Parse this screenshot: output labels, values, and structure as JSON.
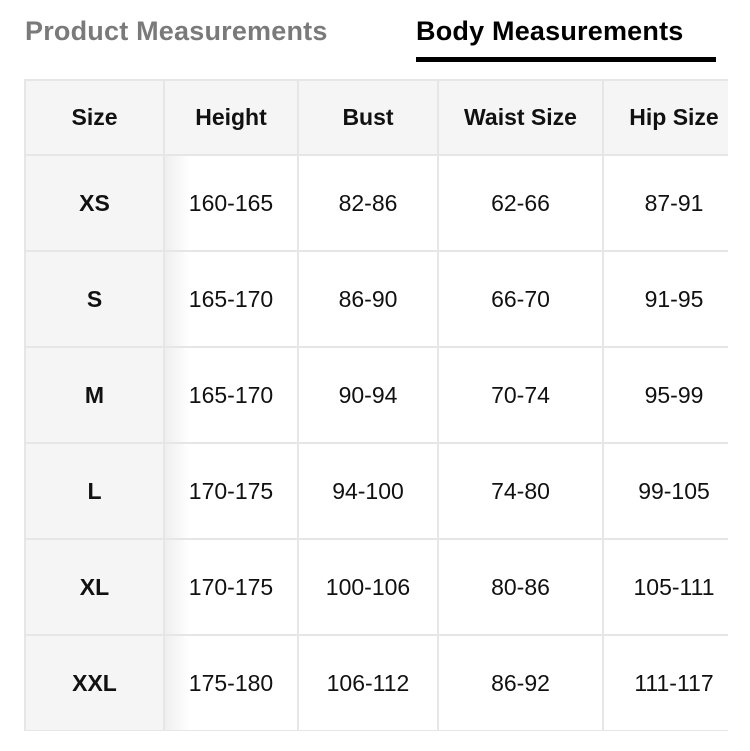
{
  "tabs": [
    {
      "label": "Product Measurements",
      "active": false
    },
    {
      "label": "Body Measurements",
      "active": true
    }
  ],
  "table": {
    "headers": [
      "Size",
      "Height",
      "Bust",
      "Waist Size",
      "Hip Size"
    ],
    "rows": [
      [
        "XS",
        "160-165",
        "82-86",
        "62-66",
        "87-91"
      ],
      [
        "S",
        "165-170",
        "86-90",
        "66-70",
        "91-95"
      ],
      [
        "M",
        "165-170",
        "90-94",
        "70-74",
        "95-99"
      ],
      [
        "L",
        "170-175",
        "94-100",
        "74-80",
        "99-105"
      ],
      [
        "XL",
        "170-175",
        "100-106",
        "80-86",
        "105-111"
      ],
      [
        "XXL",
        "175-180",
        "106-112",
        "86-92",
        "111-117"
      ]
    ]
  }
}
